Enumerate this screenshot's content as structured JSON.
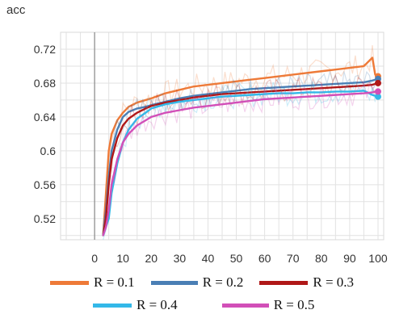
{
  "chart_data": {
    "type": "line",
    "title": "acc",
    "xlabel": "",
    "ylabel": "",
    "xlim": [
      -12,
      102
    ],
    "ylim": [
      0.495,
      0.74
    ],
    "xticks": [
      0,
      10,
      20,
      30,
      40,
      50,
      60,
      70,
      80,
      90,
      100
    ],
    "xtick_labels": [
      "0",
      "10",
      "20",
      "30",
      "40",
      "50",
      "60",
      "70",
      "80",
      "90",
      "100"
    ],
    "yticks": [
      0.52,
      0.56,
      0.6,
      0.64,
      0.68,
      0.72
    ],
    "ytick_labels": [
      "0.52",
      "0.56",
      "0.6",
      "0.64",
      "0.68",
      "0.72"
    ],
    "grid": true,
    "legend_position": "bottom",
    "x": [
      3,
      4,
      5,
      6,
      8,
      10,
      12,
      15,
      18,
      20,
      25,
      30,
      35,
      40,
      45,
      50,
      55,
      60,
      65,
      70,
      75,
      80,
      85,
      90,
      95,
      98,
      99,
      100
    ],
    "series": [
      {
        "name": "R = 0.1",
        "color": "#ee7a38",
        "values": [
          0.5,
          0.55,
          0.6,
          0.62,
          0.636,
          0.645,
          0.652,
          0.657,
          0.66,
          0.662,
          0.668,
          0.672,
          0.676,
          0.678,
          0.68,
          0.682,
          0.684,
          0.686,
          0.688,
          0.69,
          0.692,
          0.694,
          0.696,
          0.698,
          0.7,
          0.71,
          0.69,
          0.688
        ]
      },
      {
        "name": "R = 0.2",
        "color": "#4a7fb5",
        "values": [
          0.5,
          0.53,
          0.57,
          0.6,
          0.625,
          0.64,
          0.646,
          0.65,
          0.652,
          0.654,
          0.658,
          0.662,
          0.665,
          0.667,
          0.669,
          0.671,
          0.673,
          0.674,
          0.675,
          0.676,
          0.677,
          0.678,
          0.679,
          0.68,
          0.681,
          0.683,
          0.684,
          0.685
        ]
      },
      {
        "name": "R = 0.3",
        "color": "#b01818",
        "values": [
          0.5,
          0.52,
          0.56,
          0.59,
          0.615,
          0.63,
          0.638,
          0.645,
          0.65,
          0.653,
          0.657,
          0.66,
          0.663,
          0.665,
          0.667,
          0.668,
          0.669,
          0.67,
          0.671,
          0.672,
          0.673,
          0.674,
          0.675,
          0.676,
          0.677,
          0.678,
          0.679,
          0.68
        ]
      },
      {
        "name": "R = 0.4",
        "color": "#33b8e8",
        "values": [
          0.5,
          0.51,
          0.52,
          0.55,
          0.585,
          0.61,
          0.625,
          0.638,
          0.645,
          0.65,
          0.655,
          0.658,
          0.66,
          0.662,
          0.664,
          0.665,
          0.666,
          0.667,
          0.668,
          0.668,
          0.669,
          0.669,
          0.67,
          0.67,
          0.671,
          0.666,
          0.665,
          0.664
        ]
      },
      {
        "name": "R = 0.5",
        "color": "#d24fb8",
        "values": [
          0.5,
          0.51,
          0.53,
          0.56,
          0.59,
          0.61,
          0.62,
          0.63,
          0.636,
          0.64,
          0.645,
          0.648,
          0.651,
          0.653,
          0.655,
          0.657,
          0.659,
          0.661,
          0.662,
          0.663,
          0.664,
          0.665,
          0.666,
          0.667,
          0.668,
          0.669,
          0.67,
          0.67
        ]
      }
    ]
  }
}
